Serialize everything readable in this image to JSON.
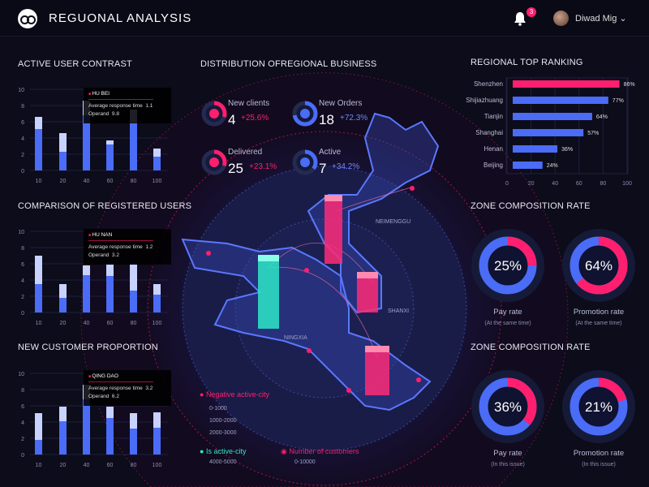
{
  "header": {
    "title": "REGUONAL ANALYSIS",
    "notifications": "3",
    "user": "Diwad Mig",
    "icons": [
      "logo-icon",
      "bell-icon",
      "chevron-down-icon"
    ]
  },
  "colors": {
    "accent": "#ff1f6e",
    "blue": "#4a6cf7",
    "light": "#c8d2ff",
    "cyan": "#2ee8c8",
    "bg": "#0c0c1a"
  },
  "chart_data": [
    {
      "type": "bar",
      "title": "ACTIVE USER CONTRAST",
      "categories": [
        "10",
        "20",
        "40",
        "60",
        "80",
        "100"
      ],
      "ylim": [
        0,
        10
      ],
      "yticks": [
        "0",
        "2",
        "4",
        "6",
        "8",
        "10"
      ],
      "series": [
        {
          "values": [
            5.1,
            2.3,
            6.8,
            3.2,
            5.9,
            1.7
          ]
        },
        {
          "values": [
            6.6,
            4.6,
            8.6,
            3.7,
            7.5,
            2.7
          ]
        }
      ],
      "tooltip": {
        "name": "HU BEI",
        "rows": [
          {
            "k": "Average response time",
            "v": "1.1"
          },
          {
            "k": "Operand",
            "v": "9.8"
          }
        ]
      }
    },
    {
      "type": "bar",
      "title": "COMPARISON OF REGISTERED USERS",
      "categories": [
        "10",
        "20",
        "40",
        "60",
        "80",
        "100"
      ],
      "ylim": [
        0,
        10
      ],
      "yticks": [
        "0",
        "2",
        "4",
        "6",
        "8",
        "10"
      ],
      "series": [
        {
          "values": [
            3.5,
            1.8,
            4.6,
            4.5,
            2.7,
            2.2
          ]
        },
        {
          "values": [
            7.0,
            3.5,
            5.8,
            5.9,
            5.9,
            3.5
          ]
        }
      ],
      "tooltip": {
        "name": "HU NAN",
        "rows": [
          {
            "k": "Average response time",
            "v": "1.2"
          },
          {
            "k": "Operand",
            "v": "3.2"
          }
        ]
      }
    },
    {
      "type": "bar",
      "title": "NEW CUSTOMER PROPORTION",
      "categories": [
        "10",
        "20",
        "40",
        "60",
        "80",
        "100"
      ],
      "ylim": [
        0,
        10
      ],
      "yticks": [
        "0",
        "2",
        "4",
        "6",
        "8",
        "10"
      ],
      "series": [
        {
          "values": [
            1.8,
            4.1,
            6.8,
            4.5,
            3.2,
            3.3
          ]
        },
        {
          "values": [
            5.1,
            5.9,
            8.6,
            5.9,
            5.1,
            5.2
          ]
        }
      ],
      "tooltip": {
        "name": "QING DAO",
        "rows": [
          {
            "k": "Average response time",
            "v": "3.2"
          },
          {
            "k": "Operand",
            "v": "6.2"
          }
        ]
      }
    },
    {
      "type": "bar",
      "orientation": "horizontal",
      "title": "REGIONAL TOP RANKING",
      "categories": [
        "Shenzhen",
        "Shijiazhuang",
        "Tianjin",
        "Shanghai",
        "Henan",
        "Beijing"
      ],
      "values": [
        86,
        77,
        64,
        57,
        36,
        24
      ],
      "labels": [
        "86%",
        "77%",
        "64%",
        "57%",
        "36%",
        "24%"
      ],
      "xlim": [
        0,
        100
      ],
      "xticks": [
        "0",
        "20",
        "40",
        "60",
        "80",
        "100"
      ]
    }
  ],
  "center": {
    "title": "DISTRIBUTION OFREGIONAL BUSINESS",
    "stats": [
      {
        "label": "New clients",
        "value": "4",
        "change": "+25.6%",
        "icon": "cloud-icon",
        "color": "#ff1f6e",
        "fill": 0.3
      },
      {
        "label": "New Orders",
        "value": "18",
        "change": "+72.3%",
        "icon": "clock-icon",
        "color": "#4a6cf7",
        "fill": 0.72
      },
      {
        "label": "Delivered",
        "value": "25",
        "change": "+23.1%",
        "icon": "cart-icon",
        "color": "#ff1f6e",
        "fill": 0.3
      },
      {
        "label": "Active",
        "value": "7",
        "change": "+34.2%",
        "icon": "bell-icon",
        "color": "#4a6cf7",
        "fill": 0.35
      }
    ],
    "map_labels": [
      "NEIMENGGU",
      "SHANXI",
      "NINGXIA"
    ],
    "legend": {
      "negative": "Negative active-city",
      "negative_ranges": [
        "0-1000",
        "1000-2000",
        "2000-3000"
      ],
      "active": "Is active-city",
      "active_ranges": [
        "4000-5000"
      ],
      "customers": "Number of customers",
      "customers_ranges": [
        "0-10000"
      ]
    }
  },
  "zones": [
    {
      "title": "ZONE COMPOSITION RATE",
      "items": [
        {
          "value": "25%",
          "pct": 25,
          "label": "Pay rate",
          "sub": "(At the same time)"
        },
        {
          "value": "64%",
          "pct": 64,
          "label": "Promotion rate",
          "sub": "(At the same time)"
        }
      ]
    },
    {
      "title": "ZONE COMPOSITION RATE",
      "items": [
        {
          "value": "36%",
          "pct": 36,
          "label": "Pay rate",
          "sub": "(In this issue)"
        },
        {
          "value": "21%",
          "pct": 21,
          "label": "Promotion rate",
          "sub": "(In this issue)"
        }
      ]
    }
  ]
}
